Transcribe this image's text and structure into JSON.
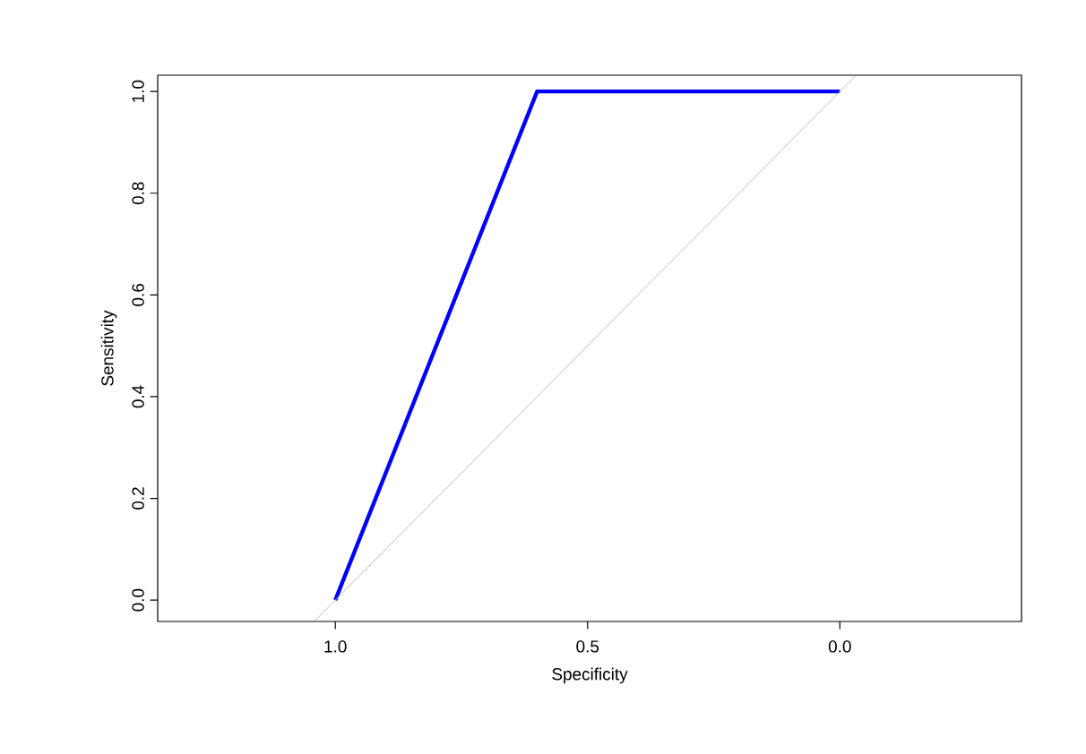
{
  "chart_data": {
    "type": "line",
    "xlabel": "Specificity",
    "ylabel": "Sensitivity",
    "xlim": [
      1.352,
      -0.36
    ],
    "ylim": [
      -0.042,
      1.032
    ],
    "xticks": [
      {
        "value": 1,
        "label": "1.0"
      },
      {
        "value": 0.5,
        "label": "0.5"
      },
      {
        "value": 0,
        "label": "0.0"
      }
    ],
    "yticks": [
      {
        "value": 0,
        "label": "0.0"
      },
      {
        "value": 0.2,
        "label": "0.2"
      },
      {
        "value": 0.4,
        "label": "0.4"
      },
      {
        "value": 0.6,
        "label": "0.6"
      },
      {
        "value": 0.8,
        "label": "0.8"
      },
      {
        "value": 1,
        "label": "1.0"
      }
    ],
    "series": [
      {
        "color": "#0000ff",
        "x": [
          1,
          0.6,
          0
        ],
        "values": [
          0,
          1,
          1
        ]
      },
      {
        "color": "#bebebe",
        "x": [
          1.04,
          -0.03
        ],
        "values": [
          -0.04,
          1.03
        ]
      }
    ],
    "marker": "none",
    "line_style": "solid"
  }
}
